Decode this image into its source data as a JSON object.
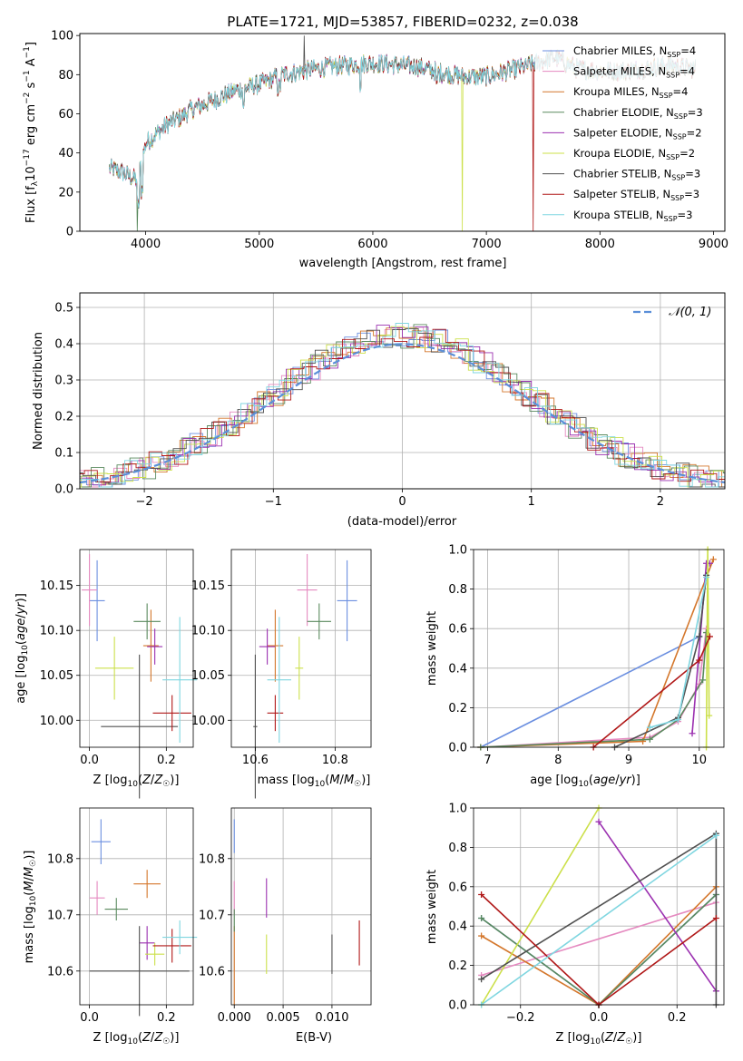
{
  "colors": {
    "chabrier_miles": "#6b8fe0",
    "salpeter_miles": "#e58ac0",
    "kroupa_miles": "#d4772c",
    "chabrier_elodie": "#5a8a5e",
    "salpeter_elodie": "#9b30b0",
    "kroupa_elodie": "#cce04a",
    "chabrier_stelib": "#505050",
    "salpeter_stelib": "#b01818",
    "kroupa_stelib": "#7fd6e0",
    "normal_curve": "#5b8fd8"
  },
  "panels": {
    "spectrum": {
      "title": "PLATE=1721, MJD=53857, FIBERID=0232, z=0.038",
      "xlabel": "wavelength [Angstrom, rest frame]",
      "ylabel": "Flux [f_λ10^-17 erg cm^-2 s^-1 A^-1]",
      "xticks": [
        "4000",
        "5000",
        "6000",
        "7000",
        "8000",
        "9000"
      ],
      "yticks": [
        "0",
        "20",
        "40",
        "60",
        "80",
        "100"
      ]
    },
    "residuals": {
      "xlabel": "(data-model)/error",
      "ylabel": "Normed distribution",
      "xticks": [
        "−2",
        "−1",
        "0",
        "1",
        "2"
      ],
      "yticks": [
        "0.0",
        "0.1",
        "0.2",
        "0.3",
        "0.4",
        "0.5"
      ],
      "legend": "N(0,1)"
    },
    "z_age": {
      "xlabel": "Z [log10(Z/Z☉)]",
      "ylabel": "age [log10(age/yr)]",
      "xticks": [
        "0.0",
        "0.2"
      ],
      "yticks": [
        "10.00",
        "10.05",
        "10.10",
        "10.15"
      ]
    },
    "mass_age": {
      "xlabel": "mass [log10(M/M☉)]",
      "xticks": [
        "10.6",
        "10.8"
      ],
      "yticks": [
        "10.00",
        "10.05",
        "10.10",
        "10.15"
      ]
    },
    "age_weight": {
      "xlabel": "age [log10(age/yr)]",
      "ylabel": "mass weight",
      "xticks": [
        "7",
        "8",
        "9",
        "10"
      ],
      "yticks": [
        "0.0",
        "0.2",
        "0.4",
        "0.6",
        "0.8",
        "1.0"
      ]
    },
    "z_mass": {
      "xlabel": "Z [log10(Z/Z☉)]",
      "ylabel": "mass [log10(M/M☉)]",
      "xticks": [
        "0.0",
        "0.2"
      ],
      "yticks": [
        "10.6",
        "10.7",
        "10.8"
      ]
    },
    "ebv_mass": {
      "xlabel": "E(B-V)",
      "xticks": [
        "0.000",
        "0.005",
        "0.010"
      ],
      "yticks": [
        "10.6",
        "10.7",
        "10.8"
      ]
    },
    "zw_weight": {
      "xlabel": "Z [log10(Z/Z☉)]",
      "ylabel": "mass weight",
      "xticks": [
        "−0.2",
        "0.0",
        "0.2"
      ],
      "yticks": [
        "0.0",
        "0.2",
        "0.4",
        "0.6",
        "0.8",
        "1.0"
      ]
    }
  },
  "chart_data": [
    {
      "type": "line",
      "title": "PLATE=1721, MJD=53857, FIBERID=0232, z=0.038",
      "xlabel": "wavelength [Angstrom, rest frame]",
      "ylabel": "Flux [fλ10^-17 erg cm^-2 s^-1 A^-1]",
      "xlim": [
        3420,
        9100
      ],
      "ylim": [
        0,
        101
      ],
      "legend_position": "top-right",
      "anchors_x": [
        3680,
        3800,
        3930,
        4000,
        4100,
        4200,
        4300,
        4400,
        4600,
        4800,
        5000,
        5200,
        5400,
        5600,
        5800,
        6000,
        6200,
        6400,
        6600,
        6800,
        7000,
        7200,
        7400,
        7600,
        7800,
        8000,
        8200,
        8400,
        8600,
        8800
      ],
      "anchors_y": [
        32,
        30,
        26,
        45,
        50,
        55,
        58,
        62,
        67,
        72,
        75,
        80,
        82,
        84,
        85,
        86,
        85,
        84,
        81,
        79,
        79,
        82,
        85,
        89,
        83,
        82,
        82,
        83,
        85,
        83
      ],
      "series": [
        {
          "name": "Chabrier MILES, N_SSP=4",
          "label_main": "Chabrier MILES, N",
          "label_sub": "SSP",
          "label_tail": "=4"
        },
        {
          "name": "Salpeter MILES, N_SSP=4",
          "label_main": "Salpeter MILES, N",
          "label_sub": "SSP",
          "label_tail": "=4"
        },
        {
          "name": "Kroupa MILES, N_SSP=4",
          "label_main": "Kroupa MILES, N",
          "label_sub": "SSP",
          "label_tail": "=4"
        },
        {
          "name": "Chabrier ELODIE, N_SSP=3",
          "label_main": "Chabrier ELODIE, N",
          "label_sub": "SSP",
          "label_tail": "=3"
        },
        {
          "name": "Salpeter ELODIE, N_SSP=2",
          "label_main": "Salpeter ELODIE, N",
          "label_sub": "SSP",
          "label_tail": "=2"
        },
        {
          "name": "Kroupa ELODIE, N_SSP=2",
          "label_main": "Kroupa ELODIE, N",
          "label_sub": "SSP",
          "label_tail": "=2"
        },
        {
          "name": "Chabrier STELIB, N_SSP=3",
          "label_main": "Chabrier STELIB, N",
          "label_sub": "SSP",
          "label_tail": "=3"
        },
        {
          "name": "Salpeter STELIB, N_SSP=3",
          "label_main": "Salpeter STELIB, N",
          "label_sub": "SSP",
          "label_tail": "=3"
        },
        {
          "name": "Kroupa STELIB, N_SSP=3",
          "label_main": "Kroupa STELIB, N",
          "label_sub": "SSP",
          "label_tail": "=3"
        }
      ]
    },
    {
      "type": "bar",
      "xlabel": "(data-model)/error",
      "ylabel": "Normed distribution",
      "xlim": [
        -2.5,
        2.5
      ],
      "ylim": [
        0,
        0.54
      ],
      "grid": true,
      "legend_position": "top-right",
      "bin_width": 0.1,
      "curve": {
        "name": "N(0,1)",
        "mean": 0,
        "sigma": 1
      }
    },
    {
      "type": "scatter",
      "xlabel": "Z [log10(Z/Z☉)]",
      "ylabel": "age [log10(age/yr)]",
      "xlim": [
        -0.025,
        0.27
      ],
      "ylim": [
        9.97,
        10.19
      ],
      "points": [
        {
          "x": 0.02,
          "xerr": 0.02,
          "y": 10.133,
          "yerr": 0.045
        },
        {
          "x": 0.0,
          "xerr": 0.02,
          "y": 10.145,
          "yerr": 0.04
        },
        {
          "x": 0.16,
          "xerr": 0.02,
          "y": 10.083,
          "yerr": 0.04
        },
        {
          "x": 0.15,
          "xerr": 0.035,
          "y": 10.11,
          "yerr": 0.02
        },
        {
          "x": 0.17,
          "xerr": 0.02,
          "y": 10.082,
          "yerr": 0.02
        },
        {
          "x": 0.065,
          "xerr": 0.05,
          "y": 10.058,
          "yerr": 0.035
        },
        {
          "x": 0.13,
          "xerr": 0.1,
          "y": 9.993,
          "yerr": 0.08
        },
        {
          "x": 0.215,
          "xerr": 0.05,
          "y": 10.008,
          "yerr": 0.02
        },
        {
          "x": 0.235,
          "xerr": 0.045,
          "y": 10.045,
          "yerr": 0.07
        }
      ]
    },
    {
      "type": "scatter",
      "xlabel": "mass [log10(M/M☉)]",
      "xlim": [
        10.54,
        10.89
      ],
      "ylim": [
        9.97,
        10.19
      ],
      "points": [
        {
          "x": 10.83,
          "xerr": 0.025,
          "y": 10.133,
          "yerr": 0.045
        },
        {
          "x": 10.73,
          "xerr": 0.025,
          "y": 10.145,
          "yerr": 0.04
        },
        {
          "x": 10.65,
          "xerr": 0.02,
          "y": 10.083,
          "yerr": 0.04
        },
        {
          "x": 10.76,
          "xerr": 0.03,
          "y": 10.11,
          "yerr": 0.02
        },
        {
          "x": 10.63,
          "xerr": 0.02,
          "y": 10.082,
          "yerr": 0.02
        },
        {
          "x": 10.71,
          "xerr": 0.01,
          "y": 10.058,
          "yerr": 0.035
        },
        {
          "x": 10.6,
          "xerr": 0.005,
          "y": 9.993,
          "yerr": 0.08
        },
        {
          "x": 10.65,
          "xerr": 0.02,
          "y": 10.008,
          "yerr": 0.02
        },
        {
          "x": 10.66,
          "xerr": 0.03,
          "y": 10.045,
          "yerr": 0.07
        }
      ]
    },
    {
      "type": "line",
      "xlabel": "age [log10(age/yr)]",
      "ylabel": "mass weight",
      "xlim": [
        6.8,
        10.35
      ],
      "ylim": [
        0,
        1
      ],
      "grid": true,
      "series": [
        {
          "x": [
            6.9,
            10.0,
            10.1
          ],
          "y": [
            0.0,
            0.56,
            0.87
          ]
        },
        {
          "x": [
            6.9,
            9.3,
            9.7,
            10.0,
            10.1
          ],
          "y": [
            0.0,
            0.05,
            0.13,
            0.32,
            0.6
          ]
        },
        {
          "x": [
            6.9,
            9.2,
            10.2
          ],
          "y": [
            0.0,
            0.03,
            0.95
          ]
        },
        {
          "x": [
            6.9,
            9.3,
            9.7,
            10.05,
            10.1
          ],
          "y": [
            0.0,
            0.04,
            0.14,
            0.34,
            0.58
          ]
        },
        {
          "x": [
            9.9,
            10.1,
            10.15
          ],
          "y": [
            0.07,
            0.93,
            0.93
          ]
        },
        {
          "x": [
            10.1,
            10.12,
            10.14
          ],
          "y": [
            0.0,
            1.0,
            0.16
          ]
        },
        {
          "x": [
            8.8,
            9.7,
            10.0,
            10.1
          ],
          "y": [
            0.0,
            0.15,
            0.56,
            0.87
          ]
        },
        {
          "x": [
            8.5,
            10.0,
            10.15
          ],
          "y": [
            0.0,
            0.44,
            0.56
          ]
        },
        {
          "x": [
            9.3,
            9.7,
            10.1
          ],
          "y": [
            0.1,
            0.14,
            0.86
          ]
        }
      ]
    },
    {
      "type": "scatter",
      "xlabel": "Z [log10(Z/Z☉)]",
      "ylabel": "mass [log10(M/M☉)]",
      "xlim": [
        -0.025,
        0.27
      ],
      "ylim": [
        10.54,
        10.89
      ],
      "points": [
        {
          "x": 0.03,
          "xerr": 0.025,
          "y": 10.83,
          "yerr": 0.04
        },
        {
          "x": 0.02,
          "xerr": 0.02,
          "y": 10.73,
          "yerr": 0.03
        },
        {
          "x": 0.15,
          "xerr": 0.035,
          "y": 10.755,
          "yerr": 0.025
        },
        {
          "x": 0.07,
          "xerr": 0.03,
          "y": 10.71,
          "yerr": 0.02
        },
        {
          "x": 0.15,
          "xerr": 0.02,
          "y": 10.65,
          "yerr": 0.03
        },
        {
          "x": 0.17,
          "xerr": 0.025,
          "y": 10.63,
          "yerr": 0.02
        },
        {
          "x": 0.13,
          "xerr": 0.13,
          "y": 10.6,
          "yerr": 0.08
        },
        {
          "x": 0.215,
          "xerr": 0.05,
          "y": 10.645,
          "yerr": 0.03
        },
        {
          "x": 0.235,
          "xerr": 0.045,
          "y": 10.66,
          "yerr": 0.03
        }
      ]
    },
    {
      "type": "scatter",
      "xlabel": "E(B-V)",
      "xlim": [
        -0.0003,
        0.014
      ],
      "ylim": [
        10.54,
        10.89
      ],
      "points": [
        {
          "x": 0.0,
          "y": 10.84,
          "yerr": 0.03
        },
        {
          "x": 0.0,
          "y": 10.73,
          "yerr": 0.03
        },
        {
          "x": 0.0,
          "y": 10.61,
          "yerr": 0.07
        },
        {
          "x": 0.0,
          "y": 10.69,
          "yerr": 0.02
        },
        {
          "x": 0.0033,
          "y": 10.73,
          "yerr": 0.035
        },
        {
          "x": 0.0033,
          "y": 10.63,
          "yerr": 0.035
        },
        {
          "x": 0.01,
          "y": 10.63,
          "yerr": 0.035
        },
        {
          "x": 0.0128,
          "y": 10.65,
          "yerr": 0.04
        }
      ]
    },
    {
      "type": "line",
      "xlabel": "Z [log10(Z/Z☉)]",
      "ylabel": "mass weight",
      "xlim": [
        -0.32,
        0.32
      ],
      "ylim": [
        0,
        1
      ],
      "grid": true,
      "series": [
        {
          "x": [
            -0.3,
            0.0,
            0.3
          ],
          "y": [
            0.44,
            0.0,
            0.56
          ]
        },
        {
          "x": [
            -0.3,
            0.3
          ],
          "y": [
            0.15,
            0.52
          ]
        },
        {
          "x": [
            -0.3,
            0.0,
            0.3
          ],
          "y": [
            0.35,
            0.0,
            0.6
          ]
        },
        {
          "x": [
            -0.3,
            0.0,
            0.3
          ],
          "y": [
            0.44,
            0.0,
            0.56
          ]
        },
        {
          "x": [
            0.0,
            0.3
          ],
          "y": [
            0.93,
            0.07
          ]
        },
        {
          "x": [
            -0.3,
            0.0
          ],
          "y": [
            0.0,
            1.0
          ]
        },
        {
          "x": [
            -0.3,
            0.3,
            0.3
          ],
          "y": [
            0.13,
            0.87,
            0.0
          ]
        },
        {
          "x": [
            -0.3,
            0.0,
            0.3
          ],
          "y": [
            0.56,
            0.0,
            0.44
          ]
        },
        {
          "x": [
            -0.3,
            0.3
          ],
          "y": [
            0.0,
            0.86
          ]
        }
      ]
    }
  ]
}
